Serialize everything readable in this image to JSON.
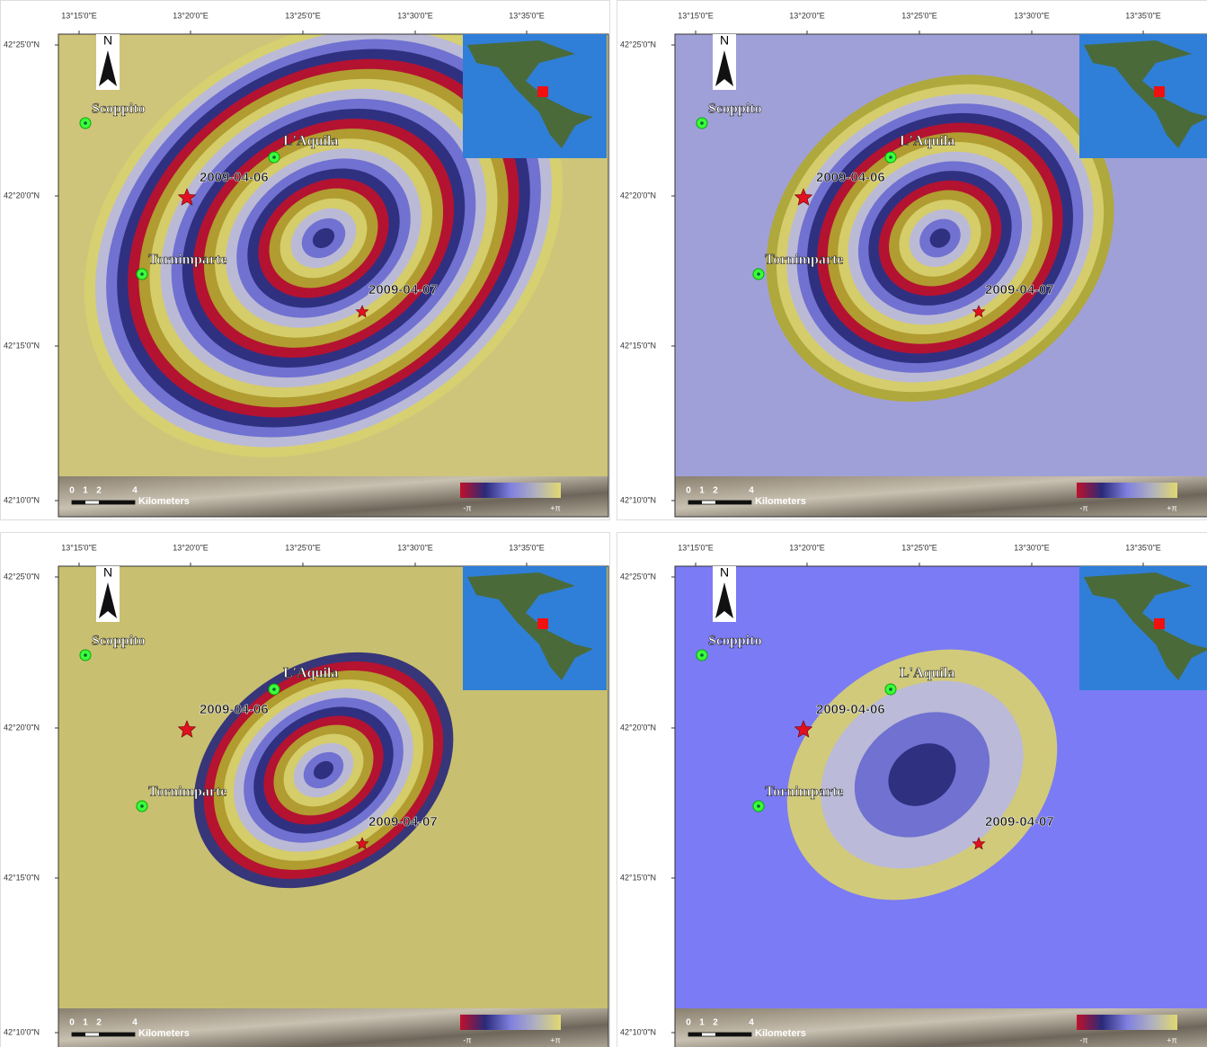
{
  "panels": [
    {
      "lon_ticks": [
        "13°15'0\"E",
        "13°20'0\"E",
        "13°25'0\"E",
        "13°30'0\"E",
        "13°35'0\"E"
      ],
      "lat_ticks": [
        "42°25'0\"N",
        "42°20'0\"N",
        "42°15'0\"N",
        "42°10'0\"N"
      ],
      "north": "N",
      "places": [
        "Scoppito",
        "L'Aquila",
        "Tornimparte"
      ],
      "events": [
        "2009-04-06",
        "2009-04-07"
      ],
      "scale_labels": [
        "0",
        "1",
        "2",
        "4"
      ],
      "scale_unit": "Kilometers",
      "colorbar_labels": [
        "-π",
        "+π"
      ]
    },
    {
      "lon_ticks": [
        "13°15'0\"E",
        "13°20'0\"E",
        "13°25'0\"E",
        "13°30'0\"E",
        "13°35'0\"E"
      ],
      "lat_ticks": [
        "42°25'0\"N",
        "42°20'0\"N",
        "42°15'0\"N",
        "42°10'0\"N"
      ],
      "north": "N",
      "places": [
        "Scoppito",
        "L'Aquila",
        "Tornimparte"
      ],
      "events": [
        "2009-04-06",
        "2009-04-07"
      ],
      "scale_labels": [
        "0",
        "1",
        "2",
        "4"
      ],
      "scale_unit": "Kilometers",
      "colorbar_labels": [
        "-π",
        "+π"
      ]
    },
    {
      "lon_ticks": [
        "13°15'0\"E",
        "13°20'0\"E",
        "13°25'0\"E",
        "13°30'0\"E",
        "13°35'0\"E"
      ],
      "lat_ticks": [
        "42°25'0\"N",
        "42°20'0\"N",
        "42°15'0\"N",
        "42°10'0\"N"
      ],
      "north": "N",
      "places": [
        "Scoppito",
        "L'Aquila",
        "Tornimparte"
      ],
      "events": [
        "2009-04-06",
        "2009-04-07"
      ],
      "scale_labels": [
        "0",
        "1",
        "2",
        "4"
      ],
      "scale_unit": "Kilometers",
      "colorbar_labels": [
        "-π",
        "+π"
      ]
    },
    {
      "lon_ticks": [
        "13°15'0\"E",
        "13°20'0\"E",
        "13°25'0\"E",
        "13°30'0\"E",
        "13°35'0\"E"
      ],
      "lat_ticks": [
        "42°25'0\"N",
        "42°20'0\"N",
        "42°15'0\"N",
        "42°10'0\"N"
      ],
      "north": "N",
      "places": [
        "Scoppito",
        "L'Aquila",
        "Tornimparte"
      ],
      "events": [
        "2009-04-06",
        "2009-04-07"
      ],
      "scale_labels": [
        "0",
        "1",
        "2",
        "4"
      ],
      "scale_unit": "Kilometers",
      "colorbar_labels": [
        "-π",
        "+π"
      ]
    }
  ]
}
